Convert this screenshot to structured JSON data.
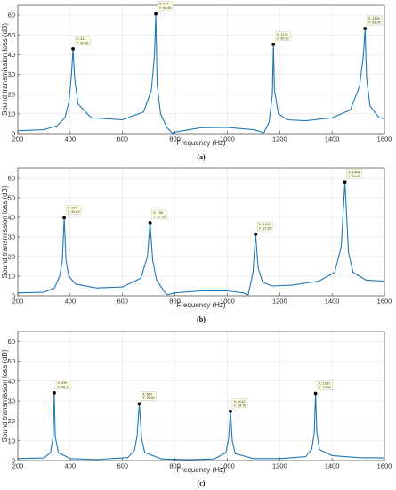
{
  "chart_data": [
    {
      "type": "line",
      "caption": "(a)",
      "xlabel": "Frequency (Hz)",
      "ylabel": "Sound transmission loss (dB)",
      "xlim": [
        200,
        1600
      ],
      "ylim": [
        0,
        65
      ],
      "xticks": [
        200,
        400,
        600,
        800,
        1000,
        1200,
        1400,
        1600
      ],
      "yticks": [
        0,
        10,
        20,
        30,
        40,
        50,
        60
      ],
      "grid": true,
      "line_color": "#1f77b4",
      "series": [
        {
          "x": [
            200,
            300,
            350,
            380,
            395,
            405,
            411,
            417,
            430,
            480,
            600,
            680,
            710,
            722,
            727,
            732,
            745,
            770,
            790,
            800,
            900,
            1000,
            1100,
            1140,
            1160,
            1172,
            1176,
            1180,
            1195,
            1230,
            1300,
            1400,
            1470,
            1505,
            1520,
            1526,
            1532,
            1545,
            1580,
            1600
          ],
          "y": [
            1.5,
            2.0,
            4.0,
            8.0,
            16.0,
            30.0,
            42.94,
            28.0,
            15.0,
            8.0,
            7.0,
            11.0,
            22.0,
            40.0,
            60.66,
            25.0,
            10.0,
            3.0,
            0.3,
            0.8,
            3.0,
            3.2,
            2.0,
            0.5,
            6.0,
            20.0,
            45.22,
            22.0,
            10.0,
            7.0,
            6.5,
            8.0,
            12.0,
            24.0,
            40.0,
            53.25,
            28.0,
            14.0,
            8.0,
            7.5
          ]
        }
      ],
      "datatips": [
        {
          "x": 411,
          "y": 42.94,
          "x_text": "X: 411",
          "y_text": "Y: 42.94"
        },
        {
          "x": 727,
          "y": 60.66,
          "x_text": "X: 727",
          "y_text": "Y: 60.66"
        },
        {
          "x": 1176,
          "y": 45.22,
          "x_text": "X: 1176",
          "y_text": "Y: 45.22"
        },
        {
          "x": 1526,
          "y": 53.25,
          "x_text": "X: 1526",
          "y_text": "Y: 53.25"
        }
      ]
    },
    {
      "type": "line",
      "caption": "(b)",
      "xlabel": "Frequency (Hz)",
      "ylabel": "Sound transmission loss (dB)",
      "xlim": [
        200,
        1600
      ],
      "ylim": [
        0,
        65
      ],
      "xticks": [
        200,
        400,
        600,
        800,
        1000,
        1200,
        1400,
        1600
      ],
      "yticks": [
        0,
        10,
        20,
        30,
        40,
        50,
        60
      ],
      "grid": true,
      "line_color": "#1f77b4",
      "series": [
        {
          "x": [
            200,
            300,
            340,
            360,
            370,
            377,
            384,
            395,
            420,
            500,
            600,
            670,
            695,
            705,
            715,
            730,
            760,
            770,
            800,
            900,
            1000,
            1060,
            1080,
            1098,
            1108,
            1118,
            1135,
            1170,
            1250,
            1350,
            1410,
            1435,
            1449,
            1463,
            1480,
            1530,
            1600
          ],
          "y": [
            1.5,
            1.8,
            4.0,
            10.0,
            18.0,
            39.83,
            18.0,
            10.0,
            6.0,
            4.0,
            4.5,
            9.0,
            20.0,
            37.31,
            18.0,
            8.0,
            2.0,
            0.5,
            1.5,
            2.5,
            2.5,
            1.5,
            0.5,
            12.0,
            31.35,
            14.0,
            7.0,
            5.0,
            5.5,
            7.5,
            12.0,
            25.0,
            58.05,
            22.0,
            12.0,
            8.0,
            7.5
          ]
        }
      ],
      "datatips": [
        {
          "x": 377,
          "y": 39.83,
          "x_text": "X: 377",
          "y_text": "Y: 39.83"
        },
        {
          "x": 705,
          "y": 37.31,
          "x_text": "X: 705",
          "y_text": "Y: 37.31"
        },
        {
          "x": 1108,
          "y": 31.35,
          "x_text": "X: 1108",
          "y_text": "Y: 31.35"
        },
        {
          "x": 1449,
          "y": 58.05,
          "x_text": "X: 1449",
          "y_text": "Y: 58.05"
        }
      ]
    },
    {
      "type": "line",
      "caption": "(c)",
      "xlabel": "Frequency (Hz)",
      "ylabel": "Sound transmission loss (dB)",
      "xlim": [
        200,
        1600
      ],
      "ylim": [
        0,
        65
      ],
      "xticks": [
        200,
        400,
        600,
        800,
        1000,
        1200,
        1400,
        1600
      ],
      "yticks": [
        0,
        10,
        20,
        30,
        40,
        50,
        60
      ],
      "grid": true,
      "line_color": "#1f77b4",
      "series": [
        {
          "x": [
            200,
            300,
            325,
            335,
            339,
            343,
            355,
            400,
            500,
            620,
            645,
            655,
            664,
            673,
            685,
            750,
            850,
            950,
            995,
            1005,
            1012,
            1019,
            1030,
            1100,
            1200,
            1300,
            1323,
            1332,
            1337,
            1342,
            1352,
            1400,
            1500,
            1600
          ],
          "y": [
            1.0,
            1.3,
            4.0,
            12.0,
            34.14,
            12.0,
            4.0,
            1.0,
            0.5,
            1.5,
            5.0,
            12.0,
            28.51,
            11.0,
            4.0,
            0.8,
            0.4,
            0.8,
            4.0,
            11.0,
            24.76,
            10.0,
            3.5,
            1.0,
            1.0,
            2.0,
            6.0,
            14.0,
            33.86,
            14.0,
            5.5,
            2.5,
            1.5,
            1.3
          ]
        }
      ],
      "datatips": [
        {
          "x": 339,
          "y": 34.14,
          "x_text": "X: 339",
          "y_text": "Y: 34.14"
        },
        {
          "x": 664,
          "y": 28.51,
          "x_text": "X: 664",
          "y_text": "Y: 28.51"
        },
        {
          "x": 1012,
          "y": 24.76,
          "x_text": "X: 1012",
          "y_text": "Y: 24.76"
        },
        {
          "x": 1337,
          "y": 33.86,
          "x_text": "X: 1337",
          "y_text": "Y: 33.86"
        }
      ]
    }
  ]
}
